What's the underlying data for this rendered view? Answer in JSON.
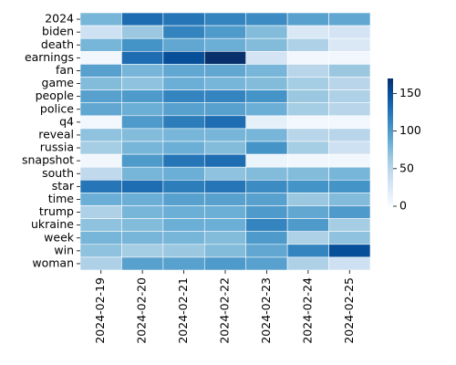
{
  "chart_data": {
    "type": "heatmap",
    "title": "",
    "xlabel": "",
    "ylabel": "",
    "x": [
      "2024-02-19",
      "2024-02-20",
      "2024-02-21",
      "2024-02-22",
      "2024-02-23",
      "2024-02-24",
      "2024-02-25"
    ],
    "y": [
      "2024",
      "biden",
      "death",
      "earnings",
      "fan",
      "game",
      "people",
      "police",
      "q4",
      "reveal",
      "russia",
      "snapshot",
      "south",
      "star",
      "time",
      "trump",
      "ukraine",
      "week",
      "win",
      "woman"
    ],
    "values": [
      [
        80,
        130,
        125,
        115,
        110,
        95,
        90
      ],
      [
        35,
        65,
        115,
        100,
        75,
        25,
        30
      ],
      [
        80,
        105,
        90,
        85,
        75,
        55,
        25
      ],
      [
        5,
        130,
        150,
        170,
        30,
        5,
        5
      ],
      [
        95,
        80,
        90,
        90,
        80,
        50,
        65
      ],
      [
        75,
        70,
        85,
        80,
        75,
        60,
        50
      ],
      [
        95,
        100,
        115,
        115,
        105,
        65,
        55
      ],
      [
        90,
        85,
        95,
        95,
        85,
        60,
        50
      ],
      [
        5,
        100,
        120,
        130,
        15,
        5,
        5
      ],
      [
        70,
        75,
        80,
        80,
        80,
        50,
        50
      ],
      [
        60,
        80,
        85,
        75,
        105,
        60,
        35
      ],
      [
        5,
        100,
        125,
        130,
        10,
        5,
        5
      ],
      [
        45,
        80,
        85,
        70,
        75,
        75,
        80
      ],
      [
        125,
        130,
        120,
        125,
        110,
        105,
        105
      ],
      [
        85,
        85,
        95,
        95,
        95,
        65,
        75
      ],
      [
        55,
        80,
        85,
        85,
        100,
        90,
        100
      ],
      [
        70,
        75,
        85,
        85,
        115,
        100,
        60
      ],
      [
        80,
        80,
        80,
        75,
        100,
        55,
        70
      ],
      [
        70,
        60,
        65,
        75,
        90,
        115,
        150
      ],
      [
        55,
        95,
        95,
        100,
        95,
        55,
        35
      ]
    ],
    "colorbar": {
      "min": 0,
      "max": 170,
      "ticks": [
        0,
        50,
        100,
        150
      ]
    },
    "colormap": "Blues",
    "colors": {
      "low": "#f7fbff",
      "high": "#08306b",
      "cell_border": "#ffffff"
    },
    "grid": false,
    "legend": "colorbar-right"
  }
}
